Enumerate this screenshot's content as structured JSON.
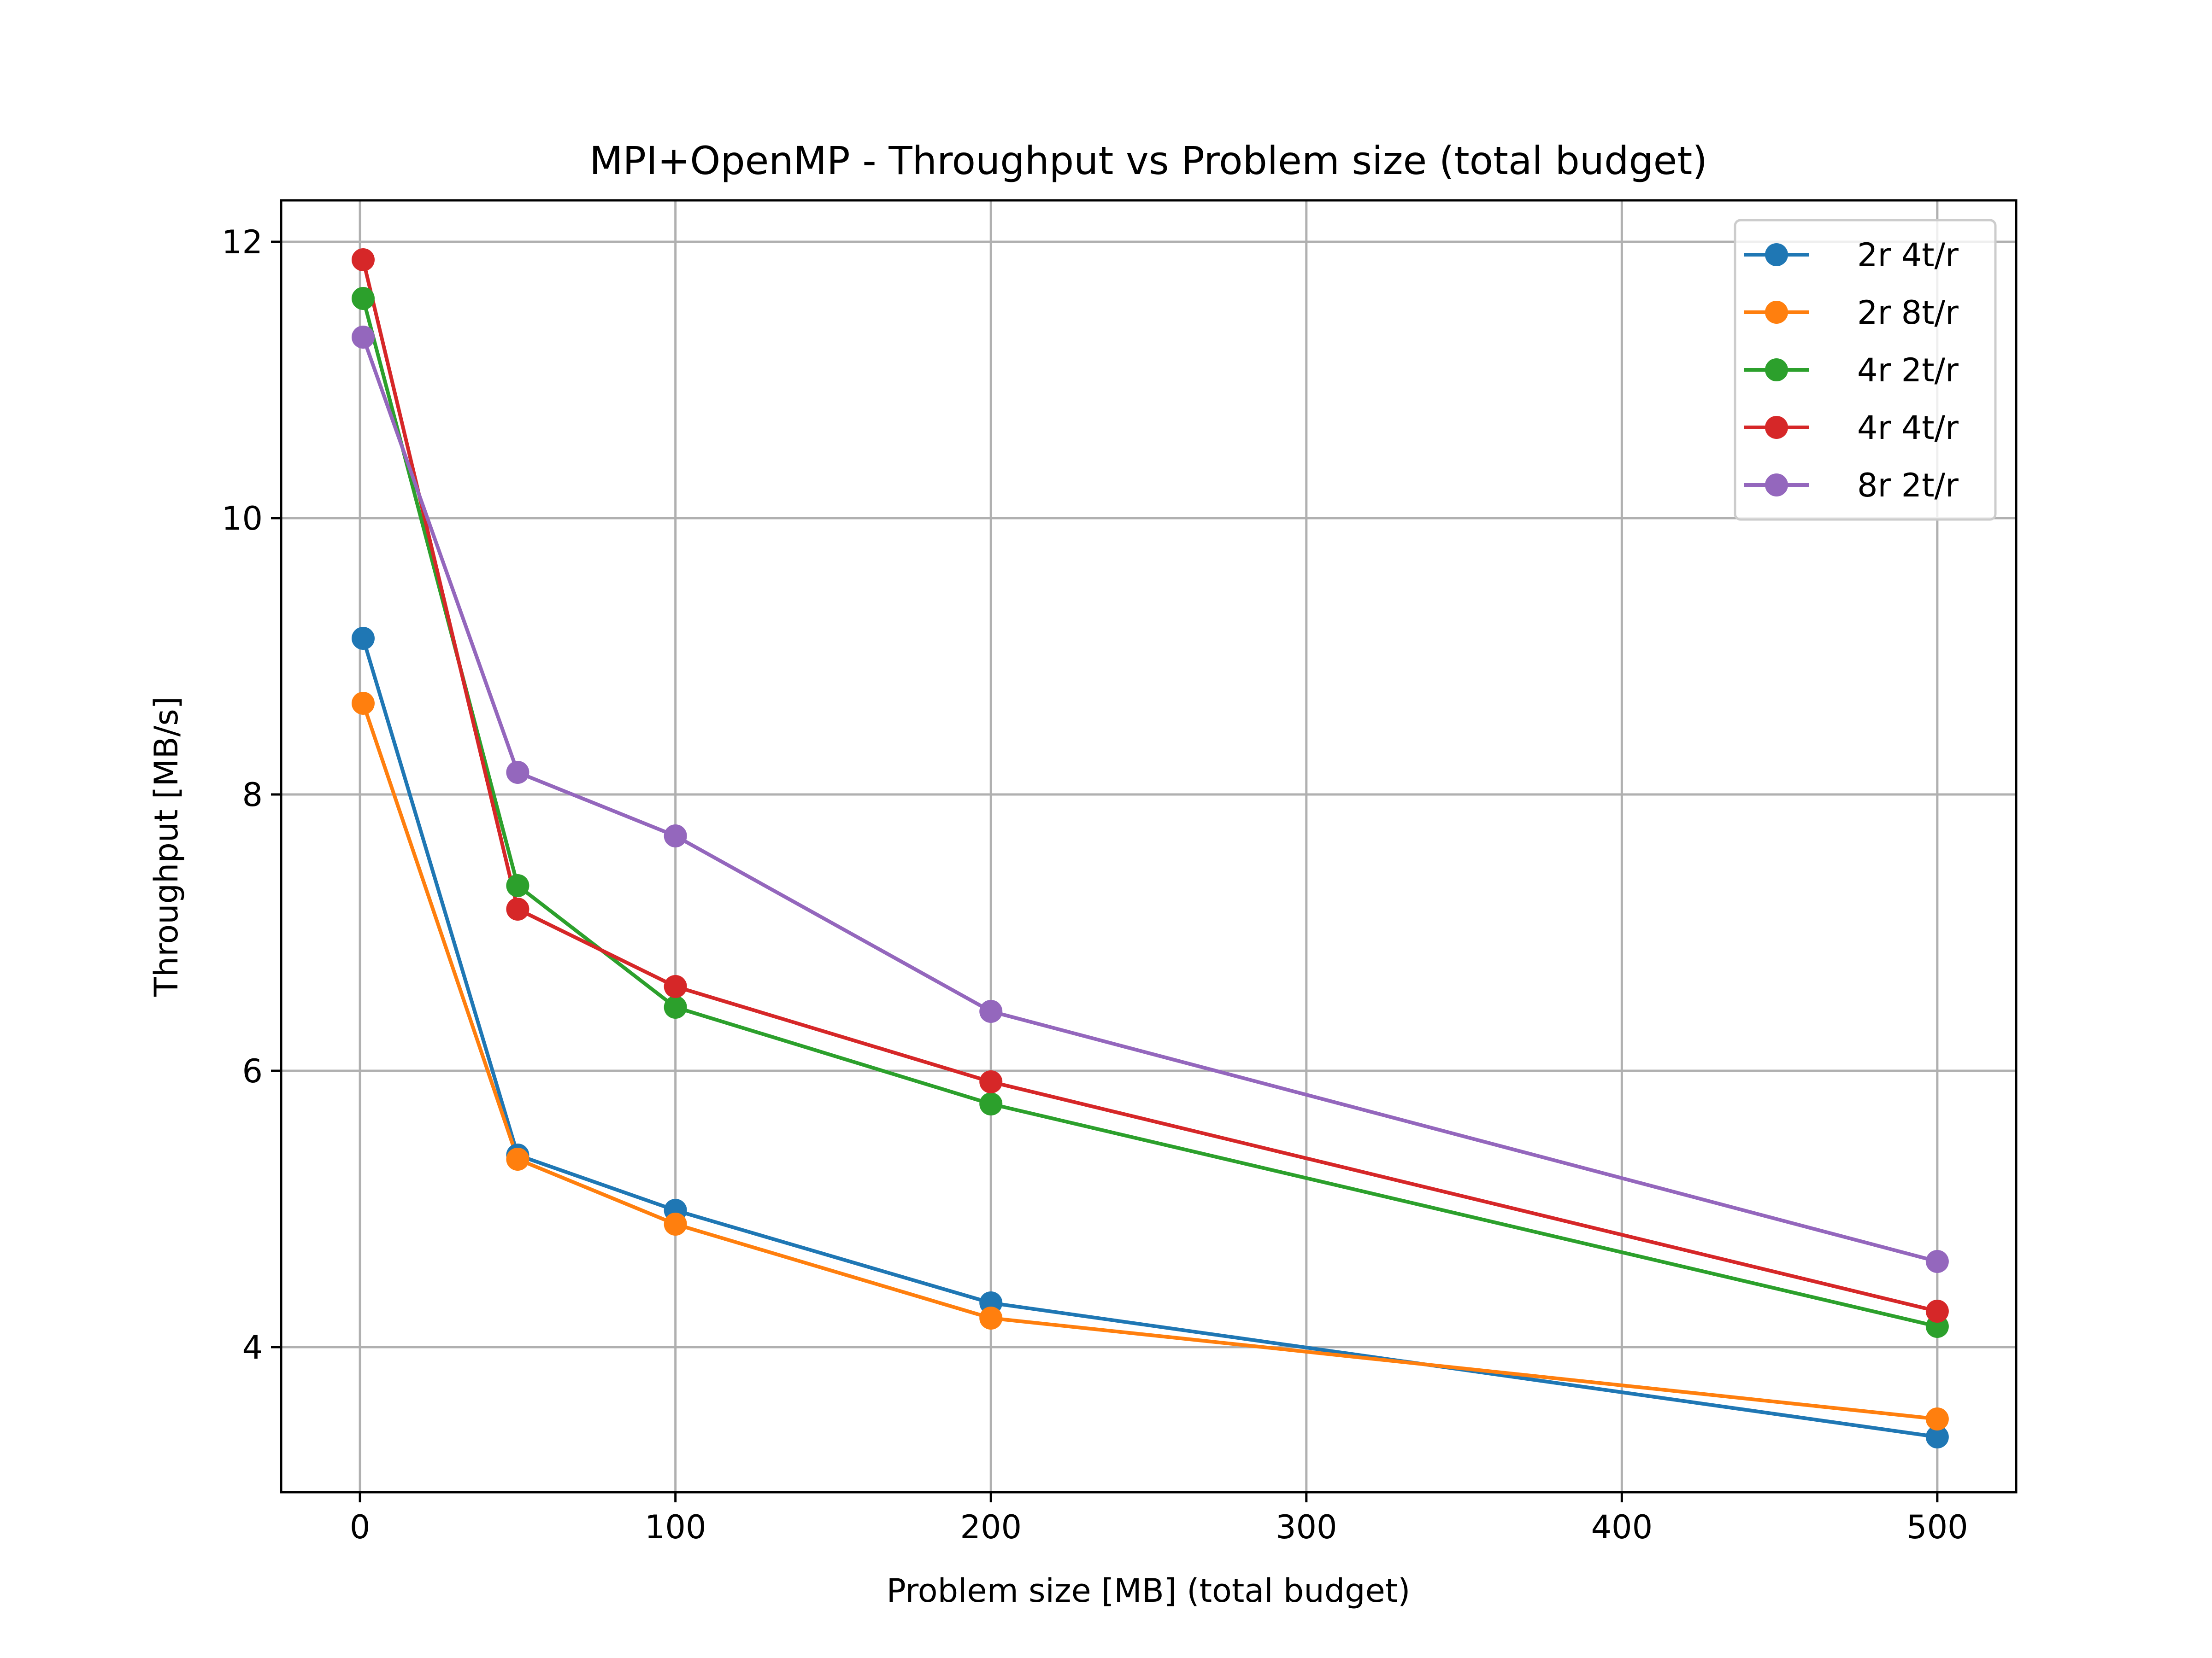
{
  "chart_data": {
    "type": "line",
    "title": "MPI+OpenMP - Throughput vs Problem size (total budget)",
    "xlabel": "Problem size [MB] (total budget)",
    "ylabel": "Throughput [MB/s]",
    "xlim": [
      -25,
      525
    ],
    "ylim": [
      2.95,
      12.3
    ],
    "xticks": [
      0,
      100,
      200,
      300,
      400,
      500
    ],
    "yticks": [
      4,
      6,
      8,
      10,
      12
    ],
    "grid": true,
    "legend_position": "top-right",
    "x": [
      1,
      50,
      100,
      200,
      500
    ],
    "series": [
      {
        "name": "2r 4t/r",
        "color": "#1f77b4",
        "values": [
          9.13,
          5.39,
          4.99,
          4.32,
          3.35
        ]
      },
      {
        "name": "2r 8t/r",
        "color": "#ff7f0e",
        "values": [
          8.66,
          5.36,
          4.89,
          4.21,
          3.48
        ]
      },
      {
        "name": "4r 2t/r",
        "color": "#2ca02c",
        "values": [
          11.59,
          7.34,
          6.46,
          5.76,
          4.15
        ]
      },
      {
        "name": "4r 4t/r",
        "color": "#d62728",
        "values": [
          11.87,
          7.17,
          6.61,
          5.92,
          4.26
        ]
      },
      {
        "name": "8r 2t/r",
        "color": "#9467bd",
        "values": [
          11.31,
          8.16,
          7.7,
          6.43,
          4.62
        ]
      }
    ]
  }
}
